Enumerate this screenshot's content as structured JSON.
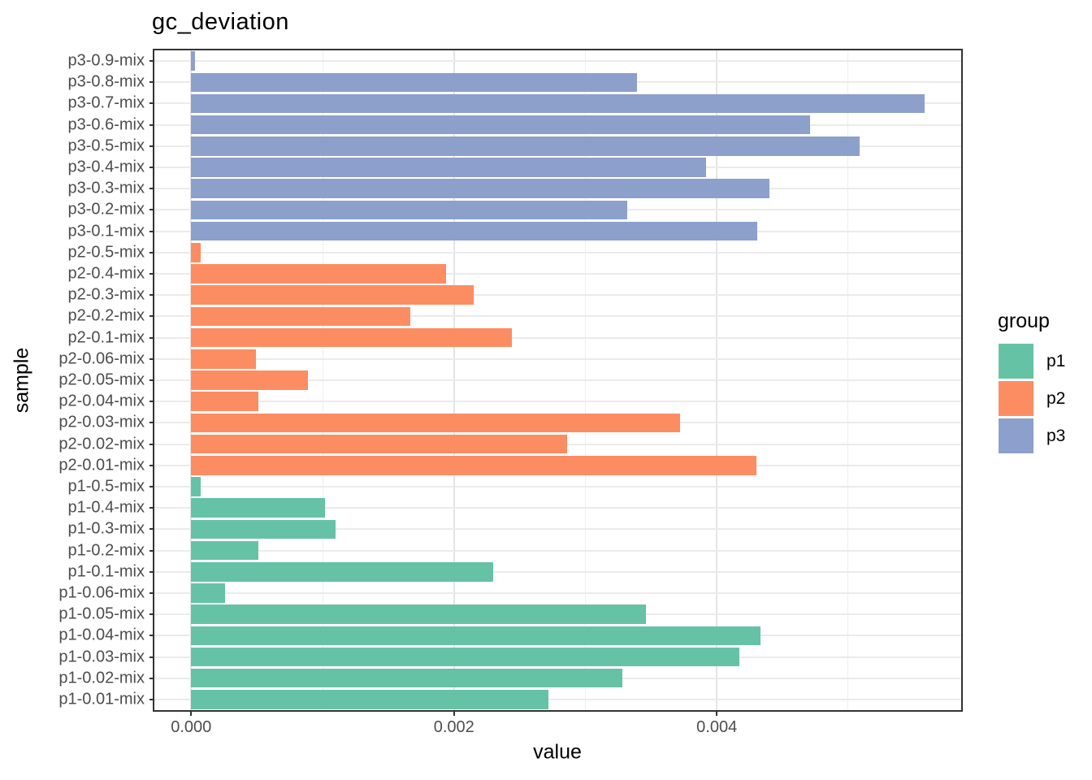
{
  "title": "gc_deviation",
  "axes": {
    "x_label": "value",
    "y_label": "sample",
    "x_tick_labels": [
      "0.000",
      "0.002",
      "0.004"
    ]
  },
  "legend": {
    "title": "group",
    "items": [
      {
        "label": "p1",
        "color": "#66C2A5"
      },
      {
        "label": "p2",
        "color": "#FC8D62"
      },
      {
        "label": "p3",
        "color": "#8DA0CB"
      }
    ]
  },
  "chart_data": {
    "type": "bar",
    "orientation": "horizontal",
    "title": "gc_deviation",
    "xlabel": "value",
    "ylabel": "sample",
    "xlim": [
      -0.00028,
      0.00586
    ],
    "x_ticks": [
      {
        "value": 0.0,
        "label": "0.000"
      },
      {
        "value": 0.002,
        "label": "0.002"
      },
      {
        "value": 0.004,
        "label": "0.004"
      }
    ],
    "minor_gridlines": [
      0.001,
      0.003,
      0.005
    ],
    "grid": true,
    "legend_position": "right",
    "category_order": "top-to-bottom",
    "categories": [
      "p3-0.9-mix",
      "p3-0.8-mix",
      "p3-0.7-mix",
      "p3-0.6-mix",
      "p3-0.5-mix",
      "p3-0.4-mix",
      "p3-0.3-mix",
      "p3-0.2-mix",
      "p3-0.1-mix",
      "p2-0.5-mix",
      "p2-0.4-mix",
      "p2-0.3-mix",
      "p2-0.2-mix",
      "p2-0.1-mix",
      "p2-0.06-mix",
      "p2-0.05-mix",
      "p2-0.04-mix",
      "p2-0.03-mix",
      "p2-0.02-mix",
      "p2-0.01-mix",
      "p1-0.5-mix",
      "p1-0.4-mix",
      "p1-0.3-mix",
      "p1-0.2-mix",
      "p1-0.1-mix",
      "p1-0.06-mix",
      "p1-0.05-mix",
      "p1-0.04-mix",
      "p1-0.03-mix",
      "p1-0.02-mix",
      "p1-0.01-mix"
    ],
    "groups": [
      "p3",
      "p3",
      "p3",
      "p3",
      "p3",
      "p3",
      "p3",
      "p3",
      "p3",
      "p2",
      "p2",
      "p2",
      "p2",
      "p2",
      "p2",
      "p2",
      "p2",
      "p2",
      "p2",
      "p2",
      "p1",
      "p1",
      "p1",
      "p1",
      "p1",
      "p1",
      "p1",
      "p1",
      "p1",
      "p1",
      "p1"
    ],
    "values": [
      3e-05,
      0.00339,
      0.00558,
      0.00471,
      0.00509,
      0.00392,
      0.0044,
      0.00332,
      0.00431,
      7e-05,
      0.00194,
      0.00215,
      0.00167,
      0.00244,
      0.00049,
      0.00089,
      0.00051,
      0.00372,
      0.00286,
      0.0043,
      7e-05,
      0.00102,
      0.0011,
      0.00051,
      0.0023,
      0.00026,
      0.00346,
      0.00433,
      0.00417,
      0.00328,
      0.00272
    ],
    "group_colors": {
      "p1": "#66C2A5",
      "p2": "#FC8D62",
      "p3": "#8DA0CB"
    },
    "styles": {
      "bar_height_frac": 0.9
    }
  }
}
